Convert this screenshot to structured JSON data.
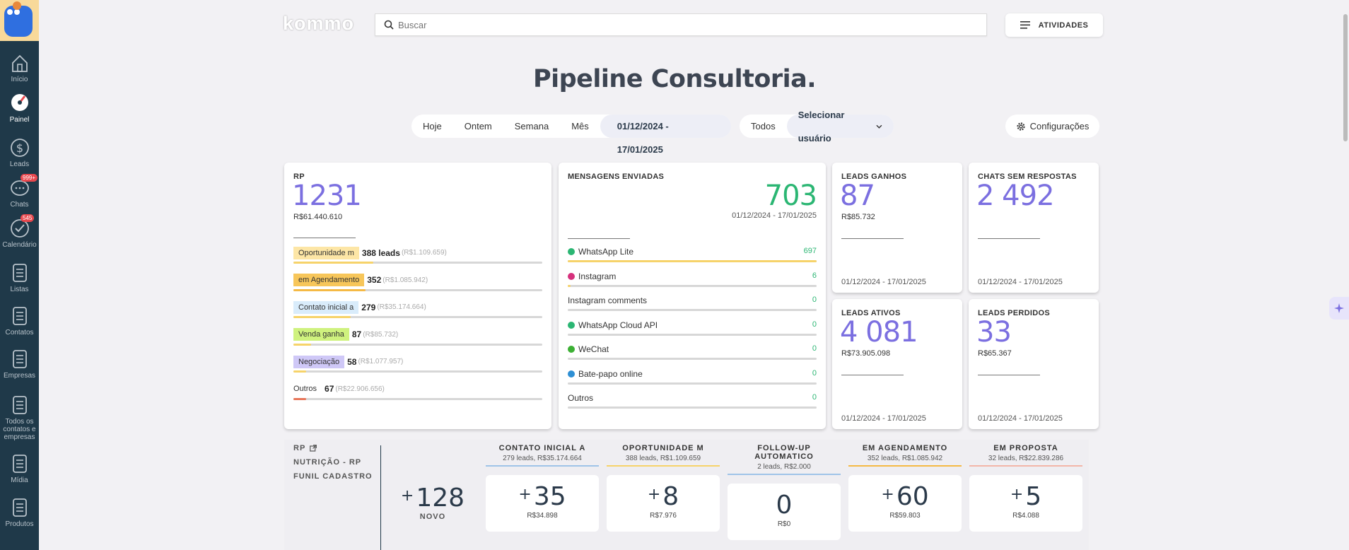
{
  "sidebar": {
    "items": [
      {
        "label": "Início",
        "icon": "home-icon"
      },
      {
        "label": "Painel",
        "icon": "dashboard-icon"
      },
      {
        "label": "Leads",
        "icon": "dollar-icon"
      },
      {
        "label": "Chats",
        "icon": "chat-icon",
        "badge": "999+"
      },
      {
        "label": "Calendário",
        "icon": "check-icon",
        "badge": "545"
      },
      {
        "label": "Listas",
        "icon": "list-icon"
      },
      {
        "label": "Contatos",
        "icon": "contacts-icon"
      },
      {
        "label": "Empresas",
        "icon": "companies-icon"
      },
      {
        "label": "Todos os contatos e empresas",
        "icon": "all-contacts-icon"
      },
      {
        "label": "Mídia",
        "icon": "media-icon"
      },
      {
        "label": "Produtos",
        "icon": "products-icon"
      }
    ]
  },
  "header": {
    "logo": "kommo",
    "search_placeholder": "Buscar",
    "activities_label": "ATIVIDADES"
  },
  "page_title": "Pipeline Consultoria.",
  "filters": {
    "periods": [
      "Hoje",
      "Ontem",
      "Semana",
      "Mês"
    ],
    "date_range": "01/12/2024 - 17/01/2025",
    "user_all": "Todos",
    "user_select": "Selecionar usuário",
    "config": "Configurações"
  },
  "cards": {
    "rp": {
      "title": "RP",
      "value": "1231",
      "amount": "R$61.440.610",
      "rows": [
        {
          "tag": "Oportunidade m",
          "count": "388 leads",
          "amount": "(R$1.109.659)",
          "color": "#fde6a6",
          "fill": 0.32,
          "fill_color": "#f6d36a"
        },
        {
          "tag": "em Agendamento",
          "count": "352",
          "amount": "(R$1.085.942)",
          "color": "#f7c65a",
          "fill": 0.29,
          "fill_color": "#f5b944"
        },
        {
          "tag": "Contato inicial a",
          "count": "279",
          "amount": "(R$35.174.664)",
          "color": "#d9ecfb",
          "fill": 0.23,
          "fill_color": "#f6d36a"
        },
        {
          "tag": "Venda ganha",
          "count": "87",
          "amount": "(R$85.732)",
          "color": "#cff27e",
          "fill": 0.07,
          "fill_color": "#f6d36a"
        },
        {
          "tag": "Negociação",
          "count": "58",
          "amount": "(R$1.077.957)",
          "color": "#cfc8f7",
          "fill": 0.05,
          "fill_color": "#f6d36a"
        },
        {
          "tag": "Outros",
          "count": "67",
          "amount": "(R$22.906.656)",
          "color": "transparent",
          "fill": 0.05,
          "fill_color": "#e8765a"
        }
      ]
    },
    "messages": {
      "title": "MENSAGENS ENVIADAS",
      "value": "703",
      "date": "01/12/2024 - 17/01/2025",
      "rows": [
        {
          "name": "WhatsApp Lite",
          "value": "697",
          "icon_color": "#2bb673",
          "fill": 1.0,
          "fill_color": "#f6d36a"
        },
        {
          "name": "Instagram",
          "value": "6",
          "icon_color": "#d6317d",
          "fill": 0.01,
          "fill_color": "#f6d36a"
        },
        {
          "name": "Instagram comments",
          "value": "0",
          "icon_color": "",
          "fill": 0,
          "fill_color": "#f6d36a"
        },
        {
          "name": "WhatsApp Cloud API",
          "value": "0",
          "icon_color": "#2bb673",
          "fill": 0,
          "fill_color": "#f6d36a"
        },
        {
          "name": "WeChat",
          "value": "0",
          "icon_color": "#3cb034",
          "fill": 0,
          "fill_color": "#f6d36a"
        },
        {
          "name": "Bate-papo online",
          "value": "0",
          "icon_color": "#2e8fd4",
          "fill": 0,
          "fill_color": "#f6d36a"
        },
        {
          "name": "Outros",
          "value": "0",
          "icon_color": "",
          "fill": 0,
          "fill_color": "#f6d36a"
        }
      ]
    },
    "leads_ganhos": {
      "title": "LEADS GANHOS",
      "value": "87",
      "amount": "R$85.732",
      "date": "01/12/2024 - 17/01/2025"
    },
    "chats_sem": {
      "title": "CHATS SEM RESPOSTAS",
      "value": "2 492",
      "amount": "",
      "date": "01/12/2024 - 17/01/2025"
    },
    "leads_ativos": {
      "title": "LEADS ATIVOS",
      "value": "4 081",
      "amount": "R$73.905.098",
      "date": "01/12/2024 - 17/01/2025"
    },
    "leads_perdidos": {
      "title": "LEADS PERDIDOS",
      "value": "33",
      "amount": "R$65.367",
      "date": "01/12/2024 - 17/01/2025"
    }
  },
  "funnel": {
    "links": [
      "RP",
      "NUTRIÇÃO - RP",
      "FUNIL CADASTRO"
    ],
    "novo": {
      "value": "128",
      "label": "NOVO"
    },
    "stages": [
      {
        "name": "CONTATO INICIAL A",
        "summary": "279 leads, R$35.174.664",
        "value": "35",
        "plus": true,
        "amount": "R$34.898",
        "color": "#9fc3e8"
      },
      {
        "name": "OPORTUNIDADE M",
        "summary": "388 leads, R$1.109.659",
        "value": "8",
        "plus": true,
        "amount": "R$7.976",
        "color": "#f6d36a"
      },
      {
        "name": "FOLLOW-UP AUTOMATICO",
        "summary": "2 leads, R$2.000",
        "value": "0",
        "plus": false,
        "amount": "R$0",
        "color": "#9fc3e8"
      },
      {
        "name": "EM AGENDAMENTO",
        "summary": "352 leads, R$1.085.942",
        "value": "60",
        "plus": true,
        "amount": "R$59.803",
        "color": "#f5b944"
      },
      {
        "name": "EM PROPOSTA",
        "summary": "32 leads, R$22.839.286",
        "value": "5",
        "plus": true,
        "amount": "R$4.088",
        "color": "#f3b6a8"
      }
    ]
  }
}
